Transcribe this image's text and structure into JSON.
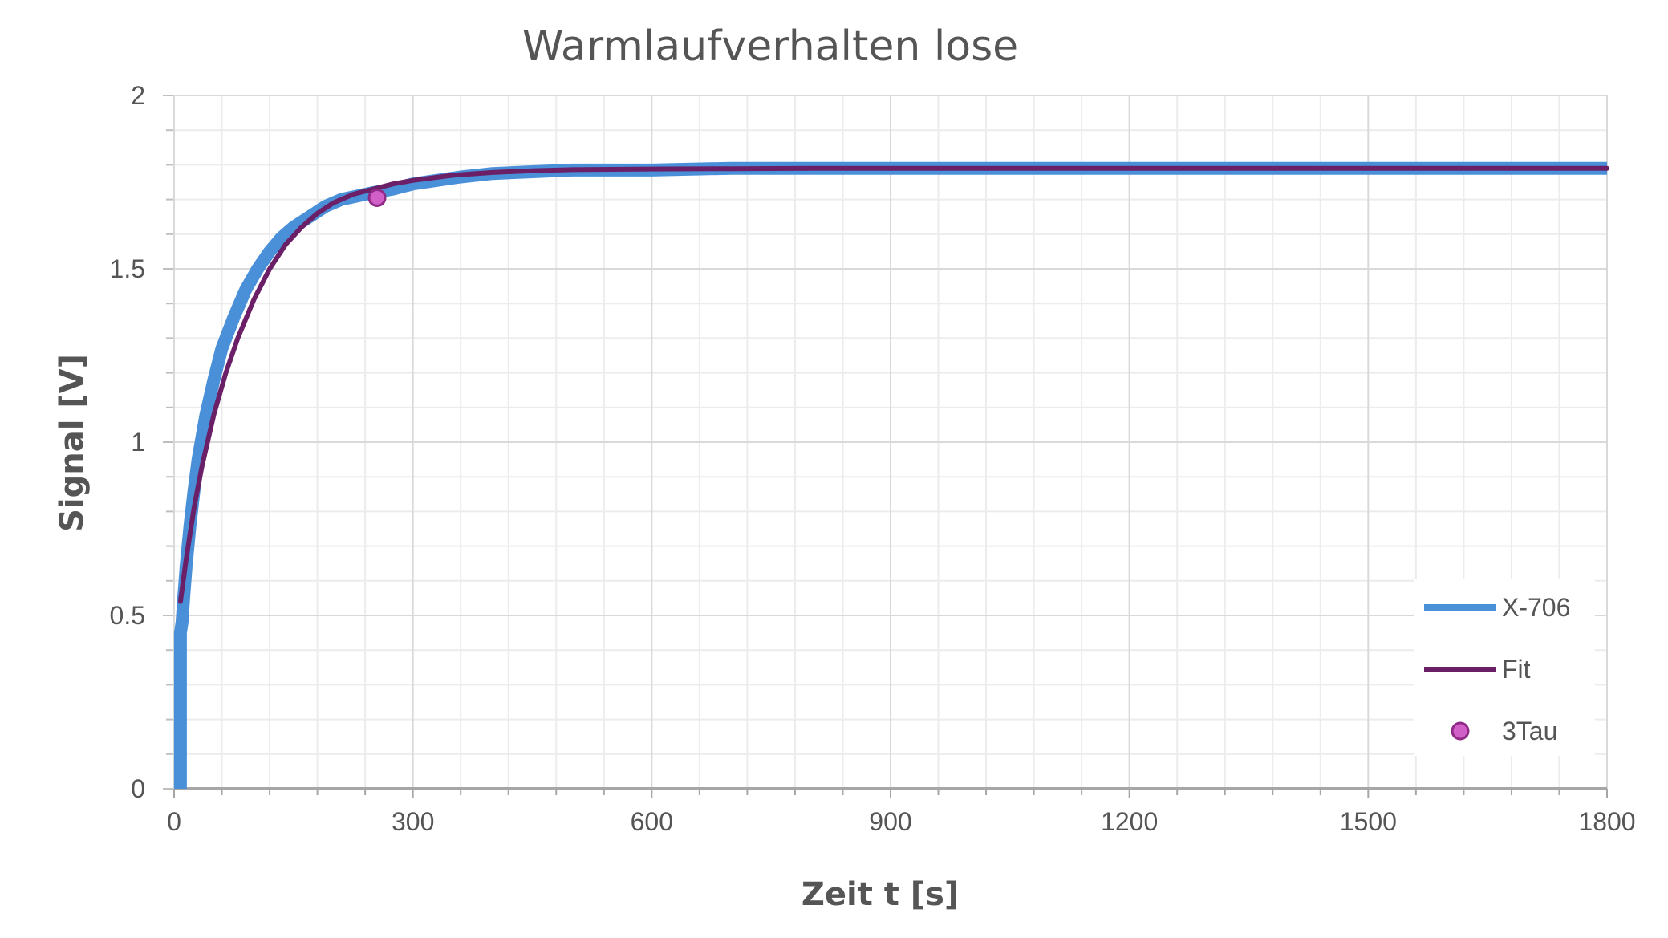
{
  "chart_data": {
    "type": "line",
    "title": "Warmlaufverhalten lose",
    "xlabel": "Zeit t [s]",
    "ylabel": "Signal [V]",
    "xlim": [
      0,
      1800
    ],
    "ylim": [
      0,
      2
    ],
    "x_major_ticks": [
      0,
      300,
      600,
      900,
      1200,
      1500,
      1800
    ],
    "x_tick_labels": [
      "0",
      "300",
      "600",
      "900",
      "1200",
      "1500",
      "1800"
    ],
    "x_minor_step": 60,
    "y_major_ticks": [
      0,
      0.5,
      1,
      1.5,
      2
    ],
    "y_tick_labels": [
      "0",
      "0.5",
      "1",
      "1.5",
      "2"
    ],
    "y_minor_step": 0.1,
    "grid": true,
    "legend_position": "bottom-right",
    "series": [
      {
        "name": "X-706",
        "type": "line",
        "color": "#4a90d9",
        "x": [
          8,
          8,
          10,
          12,
          15,
          20,
          25,
          30,
          40,
          50,
          60,
          75,
          90,
          105,
          120,
          135,
          150,
          170,
          190,
          210,
          230,
          250,
          275,
          300,
          330,
          360,
          400,
          450,
          500,
          600,
          700,
          800,
          900,
          1000,
          1100,
          1200,
          1300,
          1400,
          1500,
          1600,
          1700,
          1800
        ],
        "values": [
          0,
          0.45,
          0.48,
          0.55,
          0.64,
          0.76,
          0.86,
          0.95,
          1.08,
          1.18,
          1.27,
          1.36,
          1.44,
          1.5,
          1.55,
          1.59,
          1.62,
          1.65,
          1.68,
          1.7,
          1.71,
          1.72,
          1.73,
          1.745,
          1.755,
          1.765,
          1.775,
          1.78,
          1.785,
          1.785,
          1.79,
          1.79,
          1.79,
          1.79,
          1.79,
          1.79,
          1.79,
          1.79,
          1.79,
          1.79,
          1.79,
          1.79
        ]
      },
      {
        "name": "Fit",
        "type": "line",
        "color": "#6b1f66",
        "x": [
          8,
          15,
          25,
          35,
          50,
          65,
          80,
          100,
          120,
          140,
          160,
          180,
          200,
          225,
          250,
          275,
          300,
          350,
          400,
          450,
          500,
          600,
          700,
          800,
          900,
          1000,
          1100,
          1200,
          1300,
          1400,
          1500,
          1600,
          1700,
          1800
        ],
        "values": [
          0.54,
          0.66,
          0.81,
          0.93,
          1.08,
          1.2,
          1.3,
          1.41,
          1.5,
          1.57,
          1.62,
          1.66,
          1.69,
          1.715,
          1.73,
          1.745,
          1.755,
          1.77,
          1.778,
          1.783,
          1.786,
          1.788,
          1.789,
          1.79,
          1.79,
          1.79,
          1.79,
          1.79,
          1.79,
          1.79,
          1.79,
          1.79,
          1.79,
          1.79
        ]
      },
      {
        "name": "3Tau",
        "type": "scatter",
        "color": "#d05fc8",
        "x": [
          255
        ],
        "values": [
          1.705
        ]
      }
    ]
  }
}
